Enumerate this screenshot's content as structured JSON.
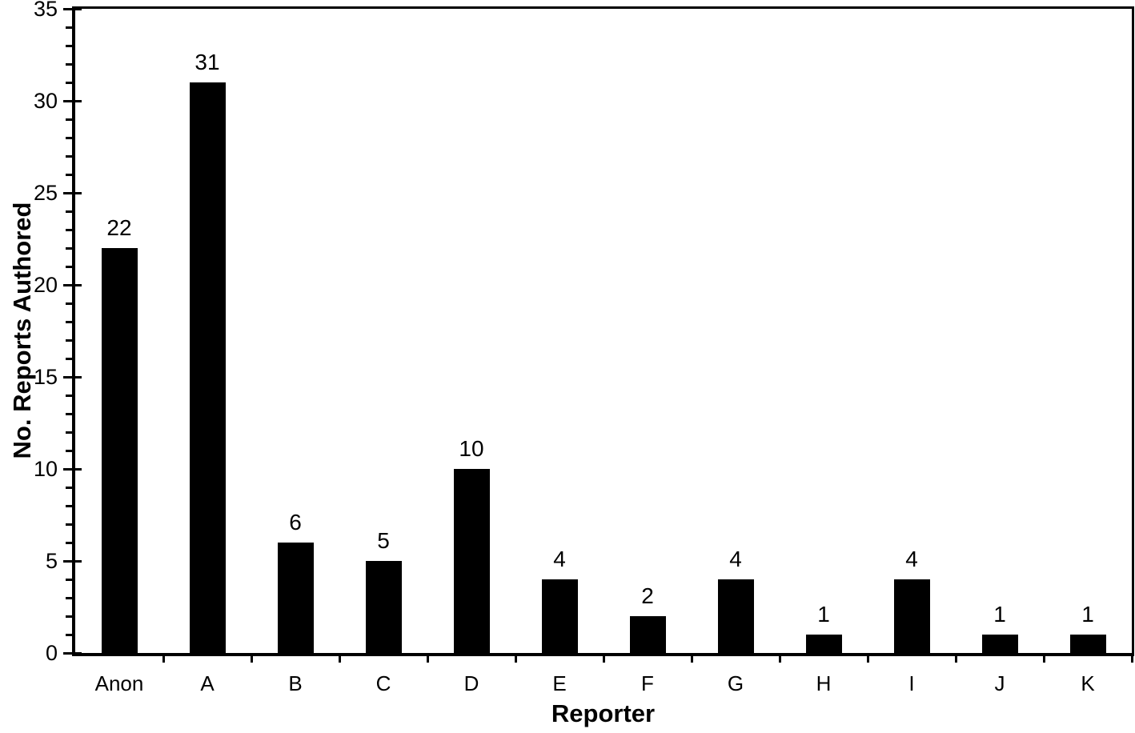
{
  "chart_data": {
    "type": "bar",
    "title": "",
    "xlabel": "Reporter",
    "ylabel": "No. Reports Authored",
    "categories": [
      "Anon",
      "A",
      "B",
      "C",
      "D",
      "E",
      "F",
      "G",
      "H",
      "I",
      "J",
      "K"
    ],
    "values": [
      22,
      31,
      6,
      5,
      10,
      4,
      2,
      4,
      1,
      4,
      1,
      1
    ],
    "bar_labels": [
      "22",
      "31",
      "6",
      "5",
      "10",
      "4",
      "2",
      "4",
      "1",
      "4",
      "1",
      "1"
    ],
    "ylim": [
      0,
      35
    ],
    "y_major_ticks": [
      "0",
      "5",
      "10",
      "15",
      "20",
      "25",
      "30",
      "35"
    ],
    "y_major_unit": 5,
    "y_minor_unit": 1,
    "bar_color": "#000000",
    "axis_color": "#000000",
    "background_color": "#ffffff",
    "grid": "off",
    "legend": "none"
  }
}
